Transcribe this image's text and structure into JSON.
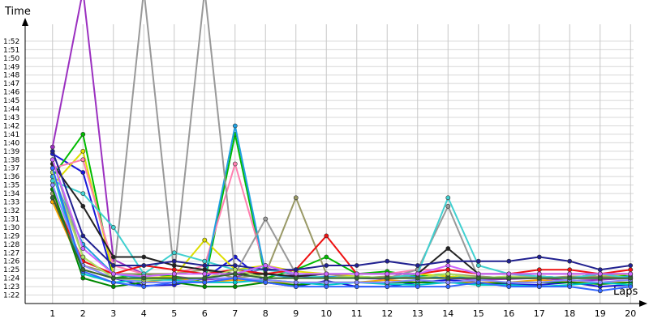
{
  "chart_data": {
    "type": "line",
    "title": "",
    "xlabel": "Laps",
    "ylabel": "Time",
    "x": [
      1,
      2,
      3,
      4,
      5,
      6,
      7,
      8,
      9,
      10,
      11,
      12,
      13,
      14,
      15,
      16,
      17,
      18,
      19,
      20
    ],
    "x_tick_labels": [
      "1",
      "2",
      "3",
      "4",
      "5",
      "6",
      "7",
      "8",
      "9",
      "10",
      "11",
      "12",
      "13",
      "14",
      "15",
      "16",
      "17",
      "18",
      "19",
      "20"
    ],
    "y_tick_labels": [
      "1:22",
      "1:23",
      "1:24",
      "1:25",
      "1:26",
      "1:27",
      "1:28",
      "1:29",
      "1:30",
      "1:31",
      "1:32",
      "1:33",
      "1:34",
      "1:35",
      "1:36",
      "1:37",
      "1:38",
      "1:39",
      "1:40",
      "1:41",
      "1:42",
      "1:43",
      "1:44",
      "1:45",
      "1:46",
      "1:47",
      "1:48",
      "1:49",
      "1:50",
      "1:51",
      "1:52"
    ],
    "y_tick_seconds": [
      82,
      83,
      84,
      85,
      86,
      87,
      88,
      89,
      90,
      91,
      92,
      93,
      94,
      95,
      96,
      97,
      98,
      99,
      100,
      101,
      102,
      103,
      104,
      105,
      106,
      107,
      108,
      109,
      110,
      111,
      112
    ],
    "ylim": [
      81,
      114
    ],
    "xlim": [
      0.1,
      20.1
    ],
    "grid": true,
    "legend": "none",
    "series": [
      {
        "color": "#9b30c0",
        "values": [
          99.5,
          118,
          86.2,
          84.5,
          84.2,
          83.8,
          84.1,
          85.2,
          84.3,
          84.1,
          84.0,
          83.9,
          84.2,
          84.0,
          83.8,
          83.9,
          84.0,
          83.7,
          83.8,
          84.0
        ]
      },
      {
        "color": "#1818d8",
        "values": [
          98.7,
          96.5,
          84.0,
          83.1,
          83.2,
          84.0,
          86.5,
          83.5,
          83.0,
          83.7,
          83.0,
          83.0,
          83.5,
          83.8,
          83.5,
          83.3,
          83.2,
          83.5,
          83.0,
          83.2
        ]
      },
      {
        "color": "#00bb00",
        "values": [
          96.0,
          101.0,
          84.0,
          84.5,
          84.2,
          83.5,
          101.0,
          84.0,
          85.0,
          86.5,
          84.5,
          84.8,
          84.2,
          84.5,
          84.0,
          84.0,
          84.2,
          84.0,
          84.5,
          84.2
        ]
      },
      {
        "color": "#dddd00",
        "values": [
          95.0,
          99.0,
          84.5,
          84.0,
          84.2,
          88.5,
          85.0,
          85.5,
          84.8,
          84.5,
          84.2,
          84.0,
          84.5,
          84.2,
          84.0,
          84.0,
          84.2,
          84.0,
          84.2,
          84.5
        ]
      },
      {
        "color": "#ff80b0",
        "values": [
          97.0,
          98.0,
          85.5,
          84.5,
          84.5,
          85.5,
          97.5,
          85.0,
          84.5,
          84.5,
          84.5,
          84.5,
          85.0,
          85.0,
          84.5,
          84.5,
          84.5,
          84.5,
          84.5,
          84.5
        ]
      },
      {
        "color": "#1fa0e0",
        "values": [
          96.0,
          88.0,
          84.5,
          84.0,
          83.8,
          84.0,
          102.0,
          84.5,
          84.0,
          84.2,
          84.0,
          84.0,
          84.2,
          84.0,
          84.2,
          84.0,
          84.2,
          84.0,
          84.0,
          84.2
        ]
      },
      {
        "color": "#999999",
        "values": [
          98.0,
          86.5,
          84.0,
          118,
          84.5,
          118,
          84.5,
          91.0,
          84.5,
          84.0,
          84.2,
          84.0,
          85.0,
          92.5,
          84.0,
          84.2,
          84.2,
          84.0,
          84.5,
          84.5
        ]
      },
      {
        "color": "#999966",
        "values": [
          94.0,
          85.5,
          84.5,
          84.5,
          84.5,
          85.0,
          84.0,
          84.5,
          93.5,
          84.5,
          84.0,
          84.2,
          84.0,
          84.5,
          84.2,
          84.0,
          84.0,
          84.2,
          84.2,
          84.0
        ]
      },
      {
        "color": "#40d0d0",
        "values": [
          95.5,
          94.0,
          90.0,
          84.5,
          87.0,
          86.0,
          85.0,
          85.0,
          84.5,
          84.0,
          84.2,
          84.0,
          84.5,
          93.5,
          85.5,
          84.5,
          84.2,
          84.0,
          84.5,
          84.0
        ]
      },
      {
        "color": "#ee1111",
        "values": [
          93.5,
          86.0,
          84.5,
          85.5,
          85.0,
          84.5,
          85.0,
          84.5,
          85.0,
          89.0,
          84.5,
          84.5,
          84.5,
          85.0,
          84.5,
          84.5,
          85.0,
          85.0,
          84.5,
          85.0
        ]
      },
      {
        "color": "#222222",
        "values": [
          97.5,
          92.5,
          86.5,
          86.5,
          85.5,
          85.0,
          84.5,
          84.5,
          84.2,
          84.5,
          84.5,
          84.5,
          84.5,
          87.5,
          84.5,
          84.5,
          84.5,
          84.5,
          84.5,
          84.5
        ]
      },
      {
        "color": "#202090",
        "values": [
          99.0,
          89.0,
          85.5,
          85.5,
          86.0,
          85.5,
          85.5,
          85.0,
          85.0,
          85.5,
          85.5,
          86.0,
          85.5,
          86.0,
          86.0,
          86.0,
          86.5,
          86.0,
          85.0,
          85.5
        ]
      },
      {
        "color": "#ffa500",
        "values": [
          93.0,
          85.0,
          84.0,
          83.5,
          84.0,
          83.5,
          83.8,
          83.5,
          83.5,
          83.5,
          83.5,
          83.8,
          83.5,
          83.5,
          83.5,
          83.5,
          83.8,
          83.5,
          83.5,
          83.5
        ]
      },
      {
        "color": "#008800",
        "values": [
          94.5,
          84.0,
          83.0,
          83.5,
          83.5,
          83.0,
          83.0,
          83.5,
          83.2,
          83.5,
          83.5,
          83.5,
          83.5,
          83.5,
          83.3,
          83.5,
          83.5,
          83.5,
          83.3,
          83.5
        ]
      },
      {
        "color": "#00c8c8",
        "values": [
          96.5,
          84.5,
          83.5,
          83.8,
          83.8,
          83.5,
          83.5,
          83.8,
          83.5,
          83.2,
          83.5,
          83.3,
          83.2,
          83.5,
          83.2,
          83.2,
          83.0,
          83.2,
          83.5,
          83.2
        ]
      },
      {
        "color": "#8888ff",
        "values": [
          95.0,
          85.5,
          84.0,
          83.5,
          83.5,
          84.0,
          84.0,
          83.8,
          83.5,
          83.5,
          83.5,
          83.5,
          83.8,
          83.5,
          83.8,
          83.5,
          83.5,
          83.8,
          83.5,
          83.8
        ]
      },
      {
        "color": "#b0e060",
        "values": [
          96.5,
          86.5,
          84.0,
          83.8,
          84.0,
          84.0,
          85.0,
          84.0,
          84.0,
          84.0,
          84.2,
          84.0,
          84.0,
          84.5,
          84.0,
          84.2,
          84.0,
          84.0,
          84.0,
          84.0
        ]
      },
      {
        "color": "#cc66ff",
        "values": [
          98.0,
          87.5,
          84.5,
          84.2,
          84.5,
          84.5,
          84.5,
          85.5,
          84.5,
          84.5,
          84.5,
          84.5,
          84.5,
          85.5,
          84.5,
          84.5,
          84.5,
          84.5,
          84.5,
          84.5
        ]
      },
      {
        "color": "#3366ff",
        "values": [
          97.0,
          84.8,
          83.5,
          83.0,
          83.5,
          83.5,
          84.0,
          83.5,
          83.0,
          83.0,
          83.0,
          83.0,
          83.0,
          83.0,
          83.5,
          83.0,
          83.0,
          83.0,
          82.5,
          83.0
        ]
      },
      {
        "color": "#336633",
        "values": [
          93.5,
          85.0,
          84.0,
          84.0,
          84.0,
          84.0,
          84.5,
          84.0,
          84.0,
          84.0,
          84.0,
          84.0,
          84.0,
          84.0,
          84.0,
          84.0,
          84.0,
          84.0,
          84.0,
          84.0
        ]
      }
    ]
  }
}
